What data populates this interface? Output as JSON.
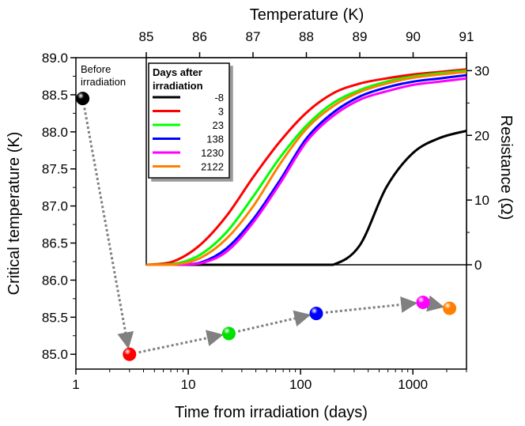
{
  "chart_data": [
    {
      "type": "scatter",
      "xlabel": "Time from irradiation (days)",
      "ylabel": "Critical temperature (K)",
      "x_scale": "log",
      "xlim": [
        1,
        3000
      ],
      "ylim": [
        84.8,
        89.0
      ],
      "x_ticks": [
        "1",
        "10",
        "100",
        "1000"
      ],
      "y_ticks": [
        "85.0",
        "85.5",
        "86.0",
        "86.5",
        "87.0",
        "87.5",
        "88.0",
        "88.5",
        "89.0"
      ],
      "annotation": "Before irradiation",
      "points": [
        {
          "x": 1.15,
          "y": 88.45,
          "color": "#000000"
        },
        {
          "x": 3,
          "y": 85.0,
          "color": "#ff0000"
        },
        {
          "x": 23,
          "y": 85.28,
          "color": "#00e000"
        },
        {
          "x": 138,
          "y": 85.55,
          "color": "#0000ff"
        },
        {
          "x": 1230,
          "y": 85.7,
          "color": "#ff00ff"
        },
        {
          "x": 2122,
          "y": 85.62,
          "color": "#ff8000"
        }
      ],
      "arrow_color": "#808080"
    },
    {
      "type": "line",
      "xlabel": "Temperature (K)",
      "ylabel": "Resistance (Ω)",
      "xlim": [
        85,
        91
      ],
      "ylim": [
        0,
        32
      ],
      "x_ticks": [
        "85",
        "86",
        "87",
        "88",
        "89",
        "90",
        "91"
      ],
      "y_ticks": [
        "0",
        "10",
        "20",
        "30"
      ],
      "legend_title": "Days after irradiation",
      "legend_title_lines": [
        "Days after",
        "irradiation"
      ],
      "legend_position": "top-left",
      "x": [
        85,
        85.5,
        86,
        86.5,
        87,
        87.5,
        88,
        88.5,
        89,
        89.5,
        90,
        90.5,
        91
      ],
      "series": [
        {
          "name": "-8",
          "color": "#000000",
          "values": [
            0,
            0,
            0,
            0,
            0,
            0,
            0,
            0,
            3,
            12,
            17.3,
            19.6,
            20.7
          ]
        },
        {
          "name": "3",
          "color": "#ff0000",
          "values": [
            0,
            0.5,
            3,
            7.5,
            13.5,
            19,
            23.5,
            26.5,
            28,
            28.8,
            29.4,
            29.8,
            30.2
          ]
        },
        {
          "name": "23",
          "color": "#00ff00",
          "values": [
            0,
            0.1,
            1.5,
            5,
            10.5,
            16.5,
            21.5,
            25,
            27,
            28.3,
            29.1,
            29.6,
            30.0
          ]
        },
        {
          "name": "138",
          "color": "#0000ff",
          "values": [
            0,
            0,
            0.3,
            2.5,
            7,
            13,
            19.5,
            23.5,
            26,
            27.4,
            28.3,
            28.8,
            29.3
          ]
        },
        {
          "name": "1230",
          "color": "#ff00ff",
          "values": [
            0,
            0,
            0.2,
            2,
            6.5,
            12.5,
            19,
            23,
            25.5,
            26.8,
            27.8,
            28.3,
            28.8
          ]
        },
        {
          "name": "2122",
          "color": "#ff8000",
          "values": [
            0,
            0,
            1,
            4,
            9,
            15.5,
            21,
            24.5,
            26.7,
            28,
            28.9,
            29.4,
            29.8
          ]
        }
      ]
    }
  ]
}
